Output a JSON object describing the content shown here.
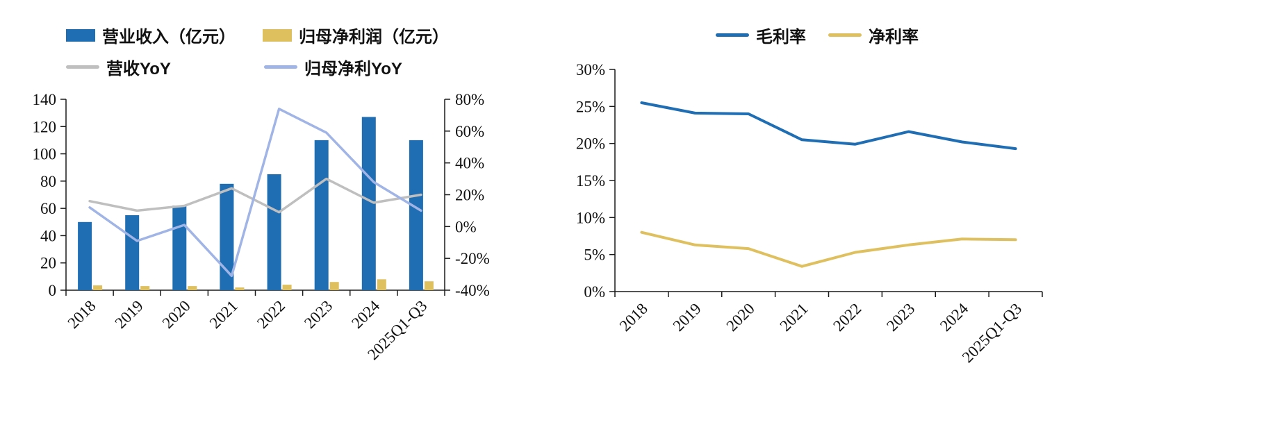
{
  "page": {
    "background": "#ffffff"
  },
  "chart_data": [
    {
      "name": "revenue-and-profit",
      "type": "bar+line",
      "categories": [
        "2018",
        "2019",
        "2020",
        "2021",
        "2022",
        "2023",
        "2024",
        "2025Q1-Q3"
      ],
      "bar_series": [
        {
          "name": "营业收入（亿元）",
          "axis": "left",
          "color": "#1f6eb4",
          "values": [
            50,
            55,
            62,
            78,
            85,
            110,
            127,
            110
          ]
        },
        {
          "name": "归母净利润（亿元）",
          "axis": "left",
          "color": "#dfc05f",
          "values": [
            3.5,
            3,
            3,
            2,
            4,
            6,
            8,
            6.5
          ]
        }
      ],
      "line_series": [
        {
          "name": "营收YoY",
          "axis": "right",
          "color": "#bfbfbf",
          "values": [
            16,
            10,
            13,
            24,
            9,
            30,
            15,
            20
          ]
        },
        {
          "name": "归母净利YoY",
          "axis": "right",
          "color": "#a0b4e6",
          "values": [
            12,
            -9,
            1,
            -31,
            74,
            59,
            28,
            10
          ]
        }
      ],
      "left_axis": {
        "min": 0,
        "max": 140,
        "step": 20,
        "format": "number",
        "ticks": [
          "0",
          "20",
          "40",
          "60",
          "80",
          "100",
          "120",
          "140"
        ]
      },
      "right_axis": {
        "min": -40,
        "max": 80,
        "step": 20,
        "format": "percent",
        "ticks": [
          "-40%",
          "-20%",
          "0%",
          "20%",
          "40%",
          "60%",
          "80%"
        ]
      },
      "grid": false,
      "legend_position": "top-left"
    },
    {
      "name": "margins",
      "type": "line",
      "categories": [
        "2018",
        "2019",
        "2020",
        "2021",
        "2022",
        "2023",
        "2024",
        "2025Q1-Q3"
      ],
      "series": [
        {
          "name": "毛利率",
          "color": "#1f6eb4",
          "values": [
            25.5,
            24.1,
            24,
            20.5,
            19.9,
            21.6,
            20.2,
            19.3
          ]
        },
        {
          "name": "净利率",
          "color": "#dfc05f",
          "values": [
            8,
            6.3,
            5.8,
            3.4,
            5.3,
            6.3,
            7.1,
            7
          ]
        }
      ],
      "y_axis": {
        "min": 0,
        "max": 30,
        "step": 5,
        "format": "percent",
        "ticks": [
          "0%",
          "5%",
          "10%",
          "15%",
          "20%",
          "25%",
          "30%"
        ]
      },
      "grid": false,
      "legend_position": "top-center"
    }
  ]
}
